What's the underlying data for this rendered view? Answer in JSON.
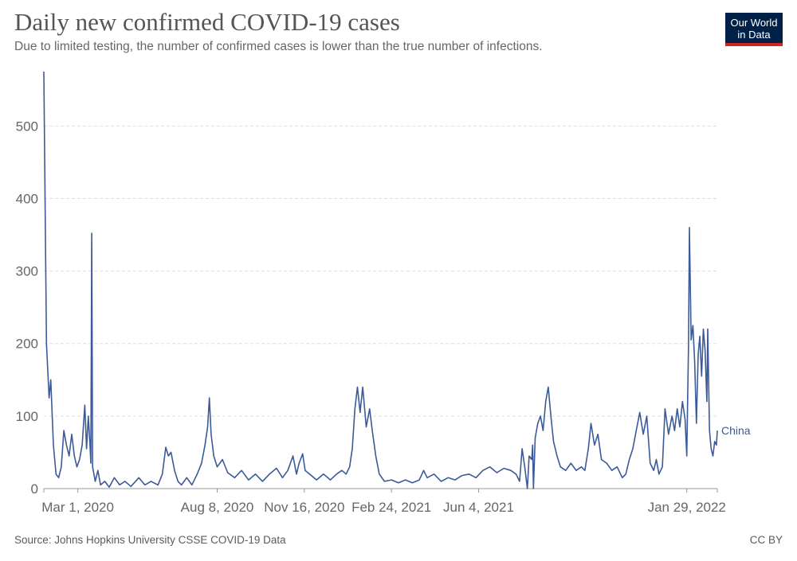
{
  "header": {
    "title": "Daily new confirmed COVID-19 cases",
    "subtitle": "Due to limited testing, the number of confirmed cases is lower than the true number of infections."
  },
  "logo": {
    "line1": "Our World",
    "line2": "in Data",
    "bg_color": "#002147",
    "bar_color": "#ce261e"
  },
  "footer": {
    "source": "Source: Johns Hopkins University CSSE COVID-19 Data",
    "license": "CC BY"
  },
  "chart_data": {
    "type": "line",
    "title": "Daily new confirmed COVID-19 cases",
    "xlabel": "",
    "ylabel": "",
    "ylim": [
      0,
      575
    ],
    "yticks": [
      0,
      100,
      200,
      300,
      400,
      500
    ],
    "xlim": [
      "2020-01-22",
      "2022-03-05"
    ],
    "xticks": [
      {
        "date": "2020-03-01",
        "label": "Mar 1, 2020"
      },
      {
        "date": "2020-08-08",
        "label": "Aug 8, 2020"
      },
      {
        "date": "2020-11-16",
        "label": "Nov 16, 2020"
      },
      {
        "date": "2021-02-24",
        "label": "Feb 24, 2021"
      },
      {
        "date": "2021-06-04",
        "label": "Jun 4, 2021"
      },
      {
        "date": "2022-01-29",
        "label": "Jan 29, 2022"
      }
    ],
    "grid": true,
    "line_color": "#3c5a99",
    "series": [
      {
        "name": "China",
        "points": [
          [
            "2020-01-22",
            575
          ],
          [
            "2020-01-25",
            200
          ],
          [
            "2020-01-28",
            125
          ],
          [
            "2020-01-30",
            150
          ],
          [
            "2020-02-02",
            60
          ],
          [
            "2020-02-05",
            20
          ],
          [
            "2020-02-08",
            15
          ],
          [
            "2020-02-11",
            30
          ],
          [
            "2020-02-14",
            80
          ],
          [
            "2020-02-17",
            60
          ],
          [
            "2020-02-20",
            45
          ],
          [
            "2020-02-23",
            75
          ],
          [
            "2020-02-26",
            45
          ],
          [
            "2020-02-29",
            30
          ],
          [
            "2020-03-03",
            40
          ],
          [
            "2020-03-06",
            60
          ],
          [
            "2020-03-09",
            115
          ],
          [
            "2020-03-11",
            55
          ],
          [
            "2020-03-13",
            100
          ],
          [
            "2020-03-15",
            60
          ],
          [
            "2020-03-16",
            35
          ],
          [
            "2020-03-17",
            352
          ],
          [
            "2020-03-18",
            30
          ],
          [
            "2020-03-21",
            10
          ],
          [
            "2020-03-24",
            25
          ],
          [
            "2020-03-27",
            5
          ],
          [
            "2020-04-01",
            10
          ],
          [
            "2020-04-06",
            2
          ],
          [
            "2020-04-12",
            15
          ],
          [
            "2020-04-18",
            5
          ],
          [
            "2020-04-24",
            10
          ],
          [
            "2020-05-01",
            3
          ],
          [
            "2020-05-10",
            15
          ],
          [
            "2020-05-17",
            5
          ],
          [
            "2020-05-24",
            10
          ],
          [
            "2020-06-01",
            5
          ],
          [
            "2020-06-06",
            20
          ],
          [
            "2020-06-10",
            57
          ],
          [
            "2020-06-13",
            45
          ],
          [
            "2020-06-16",
            50
          ],
          [
            "2020-06-20",
            25
          ],
          [
            "2020-06-24",
            10
          ],
          [
            "2020-06-28",
            5
          ],
          [
            "2020-07-04",
            15
          ],
          [
            "2020-07-10",
            5
          ],
          [
            "2020-07-16",
            20
          ],
          [
            "2020-07-21",
            35
          ],
          [
            "2020-07-25",
            60
          ],
          [
            "2020-07-28",
            85
          ],
          [
            "2020-07-30",
            125
          ],
          [
            "2020-08-01",
            75
          ],
          [
            "2020-08-04",
            45
          ],
          [
            "2020-08-08",
            30
          ],
          [
            "2020-08-14",
            40
          ],
          [
            "2020-08-20",
            22
          ],
          [
            "2020-08-28",
            15
          ],
          [
            "2020-09-05",
            25
          ],
          [
            "2020-09-13",
            12
          ],
          [
            "2020-09-21",
            20
          ],
          [
            "2020-09-29",
            10
          ],
          [
            "2020-10-07",
            20
          ],
          [
            "2020-10-15",
            28
          ],
          [
            "2020-10-22",
            15
          ],
          [
            "2020-10-28",
            25
          ],
          [
            "2020-11-03",
            45
          ],
          [
            "2020-11-07",
            20
          ],
          [
            "2020-11-10",
            35
          ],
          [
            "2020-11-14",
            48
          ],
          [
            "2020-11-17",
            25
          ],
          [
            "2020-11-22",
            20
          ],
          [
            "2020-11-30",
            12
          ],
          [
            "2020-12-08",
            20
          ],
          [
            "2020-12-16",
            12
          ],
          [
            "2020-12-23",
            20
          ],
          [
            "2020-12-29",
            25
          ],
          [
            "2021-01-03",
            20
          ],
          [
            "2021-01-07",
            30
          ],
          [
            "2021-01-10",
            55
          ],
          [
            "2021-01-13",
            110
          ],
          [
            "2021-01-16",
            140
          ],
          [
            "2021-01-19",
            105
          ],
          [
            "2021-01-22",
            140
          ],
          [
            "2021-01-26",
            85
          ],
          [
            "2021-01-30",
            110
          ],
          [
            "2021-02-02",
            80
          ],
          [
            "2021-02-06",
            45
          ],
          [
            "2021-02-10",
            20
          ],
          [
            "2021-02-16",
            10
          ],
          [
            "2021-02-24",
            12
          ],
          [
            "2021-03-04",
            8
          ],
          [
            "2021-03-12",
            12
          ],
          [
            "2021-03-20",
            8
          ],
          [
            "2021-03-28",
            12
          ],
          [
            "2021-04-02",
            25
          ],
          [
            "2021-04-06",
            15
          ],
          [
            "2021-04-14",
            20
          ],
          [
            "2021-04-22",
            10
          ],
          [
            "2021-04-30",
            15
          ],
          [
            "2021-05-08",
            12
          ],
          [
            "2021-05-16",
            18
          ],
          [
            "2021-05-24",
            20
          ],
          [
            "2021-06-01",
            15
          ],
          [
            "2021-06-09",
            25
          ],
          [
            "2021-06-17",
            30
          ],
          [
            "2021-06-25",
            22
          ],
          [
            "2021-07-03",
            28
          ],
          [
            "2021-07-11",
            25
          ],
          [
            "2021-07-17",
            20
          ],
          [
            "2021-07-21",
            10
          ],
          [
            "2021-07-24",
            55
          ],
          [
            "2021-07-27",
            30
          ],
          [
            "2021-07-30",
            0
          ],
          [
            "2021-08-01",
            45
          ],
          [
            "2021-08-04",
            40
          ],
          [
            "2021-08-05",
            60
          ],
          [
            "2021-08-06",
            0
          ],
          [
            "2021-08-08",
            70
          ],
          [
            "2021-08-11",
            90
          ],
          [
            "2021-08-14",
            100
          ],
          [
            "2021-08-17",
            80
          ],
          [
            "2021-08-20",
            120
          ],
          [
            "2021-08-23",
            140
          ],
          [
            "2021-08-26",
            100
          ],
          [
            "2021-08-29",
            65
          ],
          [
            "2021-09-02",
            45
          ],
          [
            "2021-09-06",
            30
          ],
          [
            "2021-09-12",
            25
          ],
          [
            "2021-09-18",
            35
          ],
          [
            "2021-09-24",
            25
          ],
          [
            "2021-09-30",
            30
          ],
          [
            "2021-10-04",
            25
          ],
          [
            "2021-10-08",
            55
          ],
          [
            "2021-10-11",
            90
          ],
          [
            "2021-10-15",
            60
          ],
          [
            "2021-10-19",
            75
          ],
          [
            "2021-10-23",
            40
          ],
          [
            "2021-10-29",
            35
          ],
          [
            "2021-11-04",
            25
          ],
          [
            "2021-11-10",
            30
          ],
          [
            "2021-11-16",
            15
          ],
          [
            "2021-11-20",
            20
          ],
          [
            "2021-11-24",
            40
          ],
          [
            "2021-11-28",
            55
          ],
          [
            "2021-12-02",
            80
          ],
          [
            "2021-12-06",
            105
          ],
          [
            "2021-12-10",
            75
          ],
          [
            "2021-12-14",
            100
          ],
          [
            "2021-12-18",
            35
          ],
          [
            "2021-12-22",
            25
          ],
          [
            "2021-12-25",
            40
          ],
          [
            "2021-12-28",
            20
          ],
          [
            "2022-01-01",
            30
          ],
          [
            "2022-01-04",
            110
          ],
          [
            "2022-01-08",
            75
          ],
          [
            "2022-01-12",
            100
          ],
          [
            "2022-01-15",
            80
          ],
          [
            "2022-01-18",
            110
          ],
          [
            "2022-01-21",
            85
          ],
          [
            "2022-01-24",
            120
          ],
          [
            "2022-01-27",
            95
          ],
          [
            "2022-01-29",
            45
          ],
          [
            "2022-01-31",
            200
          ],
          [
            "2022-02-01",
            360
          ],
          [
            "2022-02-03",
            205
          ],
          [
            "2022-02-05",
            225
          ],
          [
            "2022-02-07",
            175
          ],
          [
            "2022-02-09",
            90
          ],
          [
            "2022-02-11",
            185
          ],
          [
            "2022-02-13",
            210
          ],
          [
            "2022-02-15",
            155
          ],
          [
            "2022-02-17",
            220
          ],
          [
            "2022-02-19",
            190
          ],
          [
            "2022-02-21",
            120
          ],
          [
            "2022-02-22",
            220
          ],
          [
            "2022-02-24",
            80
          ],
          [
            "2022-02-26",
            55
          ],
          [
            "2022-02-28",
            45
          ],
          [
            "2022-03-02",
            65
          ],
          [
            "2022-03-04",
            60
          ],
          [
            "2022-03-05",
            80
          ]
        ]
      }
    ]
  }
}
